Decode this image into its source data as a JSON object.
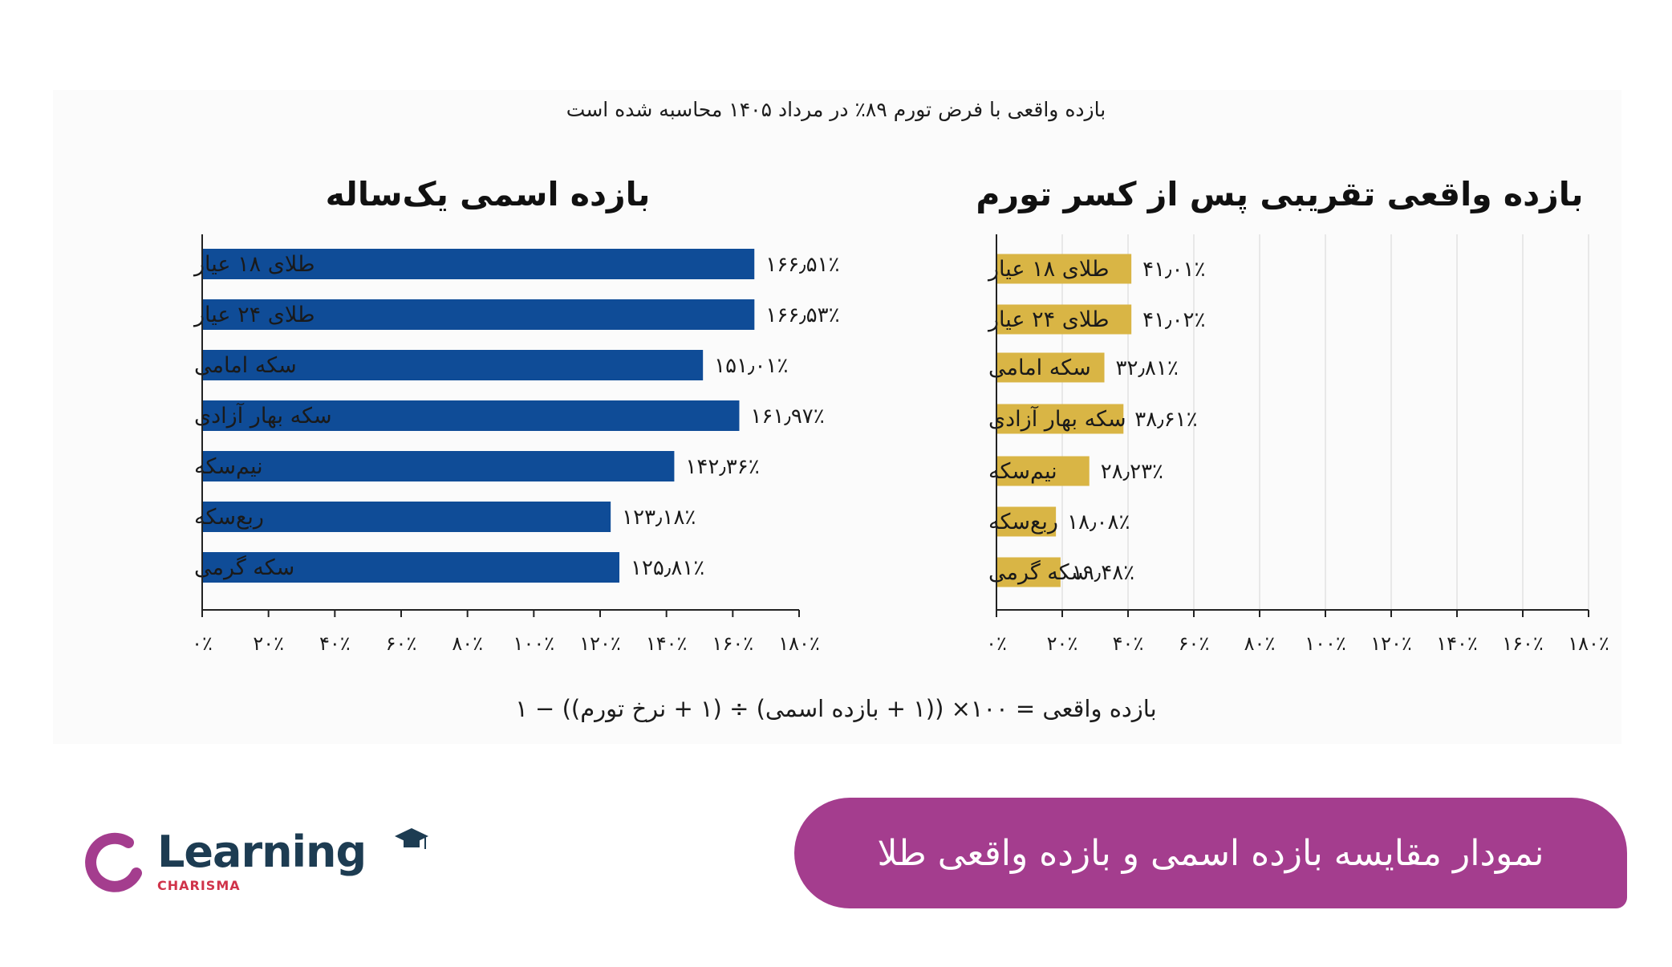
{
  "subtitle": "بازده واقعی با فرض تورم ۸۹٪ در مرداد ۱۴۰۵ محاسبه شده است",
  "formula": "بازده واقعی = ۱۰۰× ((۱ + بازده اسمی) ÷ (۱ + نرخ تورم)) − ۱",
  "banner_title": "نمودار مقایسه بازده اسمی و بازده واقعی طلا",
  "logo": {
    "name": "Learning",
    "tagline": "CHARISMA",
    "brand_color": "#a43d8e",
    "icon": "graduation-cap-icon"
  },
  "colors": {
    "nominal_bar": "#0f4c97",
    "real_bar": "#d9b545"
  },
  "chart_data": [
    {
      "type": "bar",
      "orientation": "horizontal",
      "title": "بازده اسمی یک‌ساله",
      "categories": [
        "طلای ۱۸ عیار",
        "طلای ۲۴ عیار",
        "سکه امامی",
        "سکه بهار آزادی",
        "نیم‌سکه",
        "ربع‌سکه",
        "سکه گرمی"
      ],
      "values": [
        166.51,
        166.53,
        151.01,
        161.97,
        142.36,
        123.18,
        125.81
      ],
      "value_labels": [
        "۱۶۶٫۵۱٪",
        "۱۶۶٫۵۳٪",
        "۱۵۱٫۰۱٪",
        "۱۶۱٫۹۷٪",
        "۱۴۲٫۳۶٪",
        "۱۲۳٫۱۸٪",
        "۱۲۵٫۸۱٪"
      ],
      "xlim": [
        0,
        180
      ],
      "xticks": [
        0,
        20,
        40,
        60,
        80,
        100,
        120,
        140,
        160,
        180
      ],
      "xtick_labels": [
        "۰٪",
        "۲۰٪",
        "۴۰٪",
        "۶۰٪",
        "۸۰٪",
        "۱۰۰٪",
        "۱۲۰٪",
        "۱۴۰٪",
        "۱۶۰٪",
        "۱۸۰٪"
      ],
      "grid": false
    },
    {
      "type": "bar",
      "orientation": "horizontal",
      "title": "بازده واقعی تقریبی پس از کسر تورم",
      "categories": [
        "طلای ۱۸ عیار",
        "طلای ۲۴ عیار",
        "سکه امامی",
        "سکه بهار آزادی",
        "نیم‌سکه",
        "ربع‌سکه",
        "سکه گرمی"
      ],
      "values": [
        41.01,
        41.02,
        32.81,
        38.61,
        28.23,
        18.08,
        19.48
      ],
      "value_labels": [
        "۴۱٫۰۱٪",
        "۴۱٫۰۲٪",
        "۳۲٫۸۱٪",
        "۳۸٫۶۱٪",
        "۲۸٫۲۳٪",
        "۱۸٫۰۸٪",
        "۱۹٫۴۸٪"
      ],
      "xlim": [
        0,
        180
      ],
      "xticks": [
        0,
        20,
        40,
        60,
        80,
        100,
        120,
        140,
        160,
        180
      ],
      "xtick_labels": [
        "۰٪",
        "۲۰٪",
        "۴۰٪",
        "۶۰٪",
        "۸۰٪",
        "۱۰۰٪",
        "۱۲۰٪",
        "۱۴۰٪",
        "۱۶۰٪",
        "۱۸۰٪"
      ],
      "grid": true
    }
  ]
}
